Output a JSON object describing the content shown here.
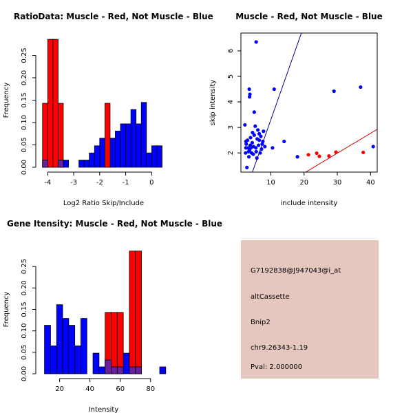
{
  "chart_data": [
    {
      "id": "ratio-hist",
      "type": "histogram",
      "title": "RatioData: Muscle - Red, Not Muscle - Blue",
      "xlabel": "Log2 Ratio Skip/Include",
      "ylabel": "Frequency",
      "xlim": [
        -4.3,
        0.6
      ],
      "ylim": [
        0,
        0.3
      ],
      "xticks": [
        -4,
        -3,
        -2,
        -1,
        0
      ],
      "yticks": [
        0.0,
        0.05,
        0.1,
        0.15,
        0.2,
        0.25
      ],
      "ytick_labels": [
        "0.00",
        "0.05",
        "0.10",
        "0.15",
        "0.20",
        "0.25"
      ],
      "bin_width": 0.2,
      "series": [
        {
          "name": "Not Muscle",
          "color": "#0000ff",
          "bins": [
            {
              "x0": -4.2,
              "value": 0.016
            },
            {
              "x0": -3.6,
              "value": 0.016
            },
            {
              "x0": -3.4,
              "value": 0.016
            },
            {
              "x0": -2.8,
              "value": 0.016
            },
            {
              "x0": -2.6,
              "value": 0.016
            },
            {
              "x0": -2.4,
              "value": 0.032
            },
            {
              "x0": -2.2,
              "value": 0.048
            },
            {
              "x0": -2.0,
              "value": 0.065
            },
            {
              "x0": -1.6,
              "value": 0.065
            },
            {
              "x0": -1.4,
              "value": 0.081
            },
            {
              "x0": -1.2,
              "value": 0.097
            },
            {
              "x0": -1.0,
              "value": 0.097
            },
            {
              "x0": -0.8,
              "value": 0.129
            },
            {
              "x0": -0.6,
              "value": 0.097
            },
            {
              "x0": -0.4,
              "value": 0.145
            },
            {
              "x0": -0.2,
              "value": 0.032
            },
            {
              "x0": 0.0,
              "value": 0.048
            },
            {
              "x0": 0.2,
              "value": 0.048
            }
          ]
        },
        {
          "name": "Muscle",
          "color": "#ff0000",
          "bins": [
            {
              "x0": -4.2,
              "value": 0.143
            },
            {
              "x0": -4.0,
              "value": 0.286
            },
            {
              "x0": -3.8,
              "value": 0.286
            },
            {
              "x0": -3.6,
              "value": 0.143
            },
            {
              "x0": -1.8,
              "value": 0.143
            }
          ]
        }
      ],
      "overlap_color": "#6a1ea0"
    },
    {
      "id": "scatter",
      "type": "scatter",
      "title": "Muscle - Red, Not Muscle - Blue",
      "xlabel": "include intensity",
      "ylabel": "skip intensity",
      "xlim": [
        1,
        42
      ],
      "ylim": [
        1.25,
        6.7
      ],
      "xticks": [
        10,
        20,
        30,
        40
      ],
      "yticks": [
        2,
        3,
        4,
        5,
        6
      ],
      "series": [
        {
          "name": "Not Muscle",
          "color": "#0000ff",
          "points": [
            [
              2.8,
              1.43
            ],
            [
              2.4,
              2.0
            ],
            [
              2.5,
              2.2
            ],
            [
              2.6,
              2.35
            ],
            [
              2.5,
              2.45
            ],
            [
              3.0,
              2.5
            ],
            [
              3.2,
              2.2
            ],
            [
              3.3,
              2.05
            ],
            [
              3.4,
              1.85
            ],
            [
              3.6,
              2.1
            ],
            [
              3.8,
              2.3
            ],
            [
              3.9,
              2.6
            ],
            [
              3.5,
              4.5
            ],
            [
              3.7,
              4.3
            ],
            [
              3.6,
              4.2
            ],
            [
              4.0,
              2.2
            ],
            [
              4.2,
              2.0
            ],
            [
              4.4,
              2.4
            ],
            [
              4.5,
              2.8
            ],
            [
              4.7,
              1.95
            ],
            [
              4.8,
              2.25
            ],
            [
              5.0,
              2.7
            ],
            [
              5.0,
              3.6
            ],
            [
              5.3,
              3.05
            ],
            [
              5.5,
              2.2
            ],
            [
              5.6,
              2.05
            ],
            [
              5.8,
              1.8
            ],
            [
              5.9,
              2.55
            ],
            [
              6.1,
              2.9
            ],
            [
              6.3,
              2.3
            ],
            [
              6.5,
              2.5
            ],
            [
              6.5,
              2.75
            ],
            [
              6.8,
              2.0
            ],
            [
              7.0,
              2.65
            ],
            [
              7.2,
              2.15
            ],
            [
              7.4,
              2.35
            ],
            [
              7.6,
              2.45
            ],
            [
              7.8,
              2.85
            ],
            [
              8.2,
              2.25
            ],
            [
              5.6,
              6.35
            ],
            [
              11.0,
              4.5
            ],
            [
              10.5,
              2.2
            ],
            [
              14.0,
              2.45
            ],
            [
              18.0,
              1.85
            ],
            [
              29.0,
              4.42
            ],
            [
              37.0,
              4.58
            ],
            [
              40.8,
              2.25
            ],
            [
              2.2,
              3.1
            ]
          ],
          "line": {
            "intercept": -0.4,
            "slope": 0.37
          }
        },
        {
          "name": "Muscle",
          "color": "#ff0000",
          "points": [
            [
              21.3,
              1.93
            ],
            [
              23.8,
              1.99
            ],
            [
              24.6,
              1.87
            ],
            [
              27.5,
              1.88
            ],
            [
              29.6,
              2.03
            ],
            [
              37.8,
              2.02
            ]
          ],
          "line": {
            "intercept": -0.35,
            "slope": 0.078
          }
        }
      ]
    },
    {
      "id": "intensity-hist",
      "type": "histogram",
      "title": "Gene Itensity: Muscle - Red, Not Muscle - Blue",
      "xlabel": "Intensity",
      "ylabel": "Frequency",
      "xlim": [
        7,
        91
      ],
      "ylim": [
        0,
        0.3
      ],
      "xticks": [
        20,
        40,
        60,
        80
      ],
      "yticks": [
        0.0,
        0.05,
        0.1,
        0.15,
        0.2,
        0.25
      ],
      "ytick_labels": [
        "0.00",
        "0.05",
        "0.10",
        "0.15",
        "0.20",
        "0.25"
      ],
      "bin_width": 4,
      "series": [
        {
          "name": "Not Muscle",
          "color": "#0000ff",
          "bins": [
            {
              "x0": 10,
              "value": 0.113
            },
            {
              "x0": 14,
              "value": 0.065
            },
            {
              "x0": 18,
              "value": 0.161
            },
            {
              "x0": 22,
              "value": 0.129
            },
            {
              "x0": 26,
              "value": 0.113
            },
            {
              "x0": 30,
              "value": 0.065
            },
            {
              "x0": 34,
              "value": 0.129
            },
            {
              "x0": 42,
              "value": 0.048
            },
            {
              "x0": 46,
              "value": 0.016
            },
            {
              "x0": 50,
              "value": 0.032
            },
            {
              "x0": 54,
              "value": 0.016
            },
            {
              "x0": 58,
              "value": 0.016
            },
            {
              "x0": 62,
              "value": 0.048
            },
            {
              "x0": 66,
              "value": 0.016
            },
            {
              "x0": 70,
              "value": 0.016
            },
            {
              "x0": 86,
              "value": 0.016
            }
          ]
        },
        {
          "name": "Muscle",
          "color": "#ff0000",
          "bins": [
            {
              "x0": 50,
              "value": 0.143
            },
            {
              "x0": 54,
              "value": 0.143
            },
            {
              "x0": 58,
              "value": 0.143
            },
            {
              "x0": 66,
              "value": 0.286
            },
            {
              "x0": 70,
              "value": 0.286
            }
          ]
        }
      ],
      "overlap_color": "#6a1ea0"
    }
  ],
  "info_panel": {
    "background": "#e5c7bf",
    "probe_id": "G7192838@J947043@i_at",
    "event_type": "altCassette",
    "gene": "Bnip2",
    "location": "chr9.26343-1.19",
    "pval": "Pval: 2.000000",
    "pval_color": "#b00000"
  }
}
